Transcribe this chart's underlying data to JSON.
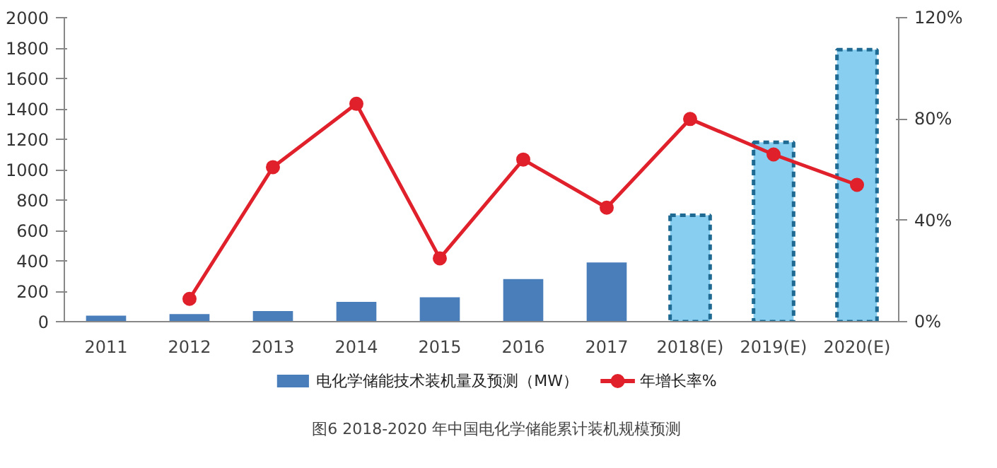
{
  "chart_data": {
    "type": "bar",
    "title": "图6 2018-2020 年中国电化学储能累计装机规模预测",
    "categories": [
      "2011",
      "2012",
      "2013",
      "2014",
      "2015",
      "2016",
      "2017",
      "2018(E)",
      "2019(E)",
      "2020(E)"
    ],
    "series": [
      {
        "name": "电化学储能技术装机量及预测（MW）",
        "color": "#4a7ebb",
        "colors": [
          "#4a7ebb",
          "#4a7ebb",
          "#4a7ebb",
          "#4a7ebb",
          "#4a7ebb",
          "#4a7ebb",
          "#4a7ebb",
          "#87cef0",
          "#87cef0",
          "#87cef0"
        ],
        "values": [
          40,
          50,
          70,
          130,
          160,
          280,
          390,
          700,
          1180,
          1790
        ]
      },
      {
        "name": "年增长率%",
        "type": "line",
        "axis": "y2",
        "color": "#e0202a",
        "marker": "circle",
        "values": [
          null,
          9,
          61,
          86,
          25,
          64,
          45,
          80,
          66,
          54
        ]
      }
    ],
    "ylim": [
      0,
      2000
    ],
    "yticks": [
      0,
      200,
      400,
      600,
      800,
      1000,
      1200,
      1400,
      1600,
      1800,
      2000
    ],
    "y2lim": [
      0,
      120
    ],
    "y2ticks": [
      {
        "value": 0,
        "label": "0%"
      },
      {
        "value": 40,
        "label": "40%"
      },
      {
        "value": 80,
        "label": "80%"
      },
      {
        "value": 120,
        "label": "120%"
      }
    ],
    "grid": false,
    "legend": "bottom"
  }
}
